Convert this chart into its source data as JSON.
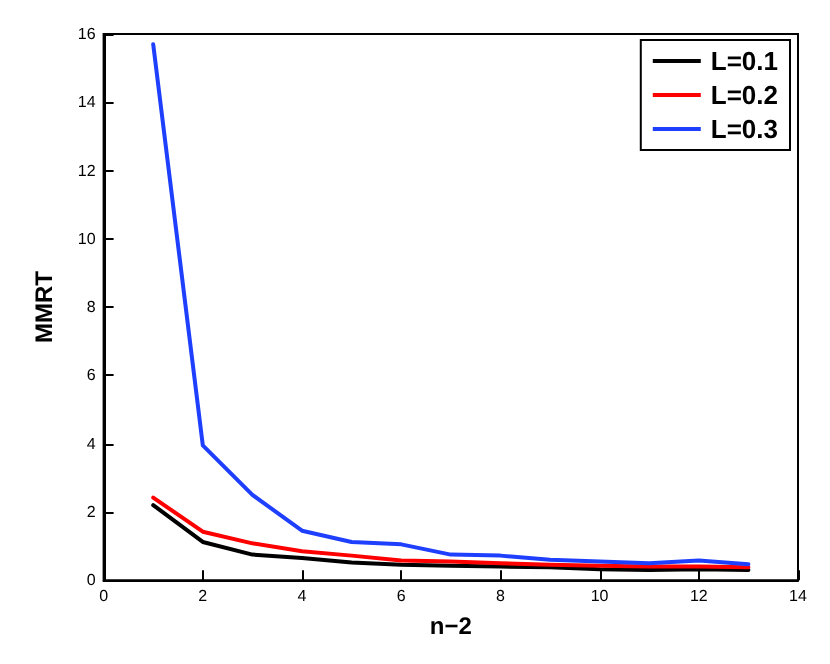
{
  "chart_data": {
    "type": "line",
    "xlabel": "n−2",
    "ylabel": "MMRT",
    "x": [
      1,
      2,
      3,
      4,
      5,
      6,
      7,
      8,
      9,
      10,
      11,
      12,
      13
    ],
    "xlim": [
      0,
      14
    ],
    "xticks": [
      0,
      2,
      4,
      6,
      8,
      10,
      12,
      14
    ],
    "ylim": [
      0,
      16
    ],
    "yticks": [
      0,
      2,
      4,
      6,
      8,
      10,
      12,
      14,
      16
    ],
    "grid": false,
    "legend": "top right",
    "marker": "none",
    "line_style": "solid",
    "series": [
      {
        "name": "L=0.1",
        "color": "#000000",
        "values": [
          2.2,
          1.12,
          0.75,
          0.65,
          0.52,
          0.45,
          0.42,
          0.4,
          0.38,
          0.32,
          0.3,
          0.32,
          0.3
        ]
      },
      {
        "name": "L=0.2",
        "color": "#ff0000",
        "values": [
          2.42,
          1.42,
          1.08,
          0.85,
          0.72,
          0.58,
          0.55,
          0.5,
          0.45,
          0.42,
          0.4,
          0.4,
          0.38
        ]
      },
      {
        "name": "L=0.3",
        "color": "#1f3fff",
        "values": [
          15.7,
          3.95,
          2.5,
          1.45,
          1.12,
          1.05,
          0.75,
          0.72,
          0.6,
          0.55,
          0.5,
          0.58,
          0.47
        ]
      }
    ]
  }
}
